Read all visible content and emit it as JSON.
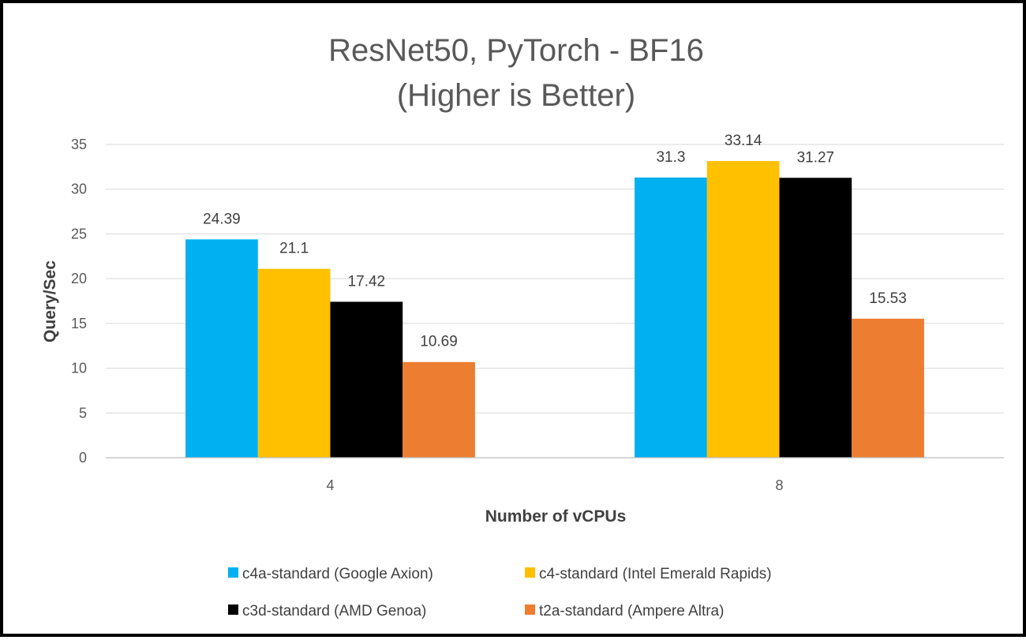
{
  "chart_data": {
    "type": "bar",
    "title": [
      "ResNet50, PyTorch - BF16",
      "(Higher is Better)"
    ],
    "xlabel": "Number of vCPUs",
    "ylabel": "Query/Sec",
    "categories": [
      "4",
      "8"
    ],
    "ylim": [
      0,
      35
    ],
    "yticks": [
      0,
      5,
      10,
      15,
      20,
      25,
      30,
      35
    ],
    "grid": true,
    "legend_position": "bottom",
    "data_labels": true,
    "series": [
      {
        "name": "c4a-standard (Google Axion)",
        "color": "#00B0F0",
        "values": [
          24.39,
          31.3
        ]
      },
      {
        "name": "c4-standard (Intel Emerald Rapids)",
        "color": "#FFC000",
        "values": [
          21.1,
          33.14
        ]
      },
      {
        "name": "c3d-standard (AMD Genoa)",
        "color": "#000000",
        "values": [
          17.42,
          31.27
        ]
      },
      {
        "name": "t2a-standard (Ampere Altra)",
        "color": "#ED7D31",
        "values": [
          10.69,
          15.53
        ]
      }
    ]
  }
}
